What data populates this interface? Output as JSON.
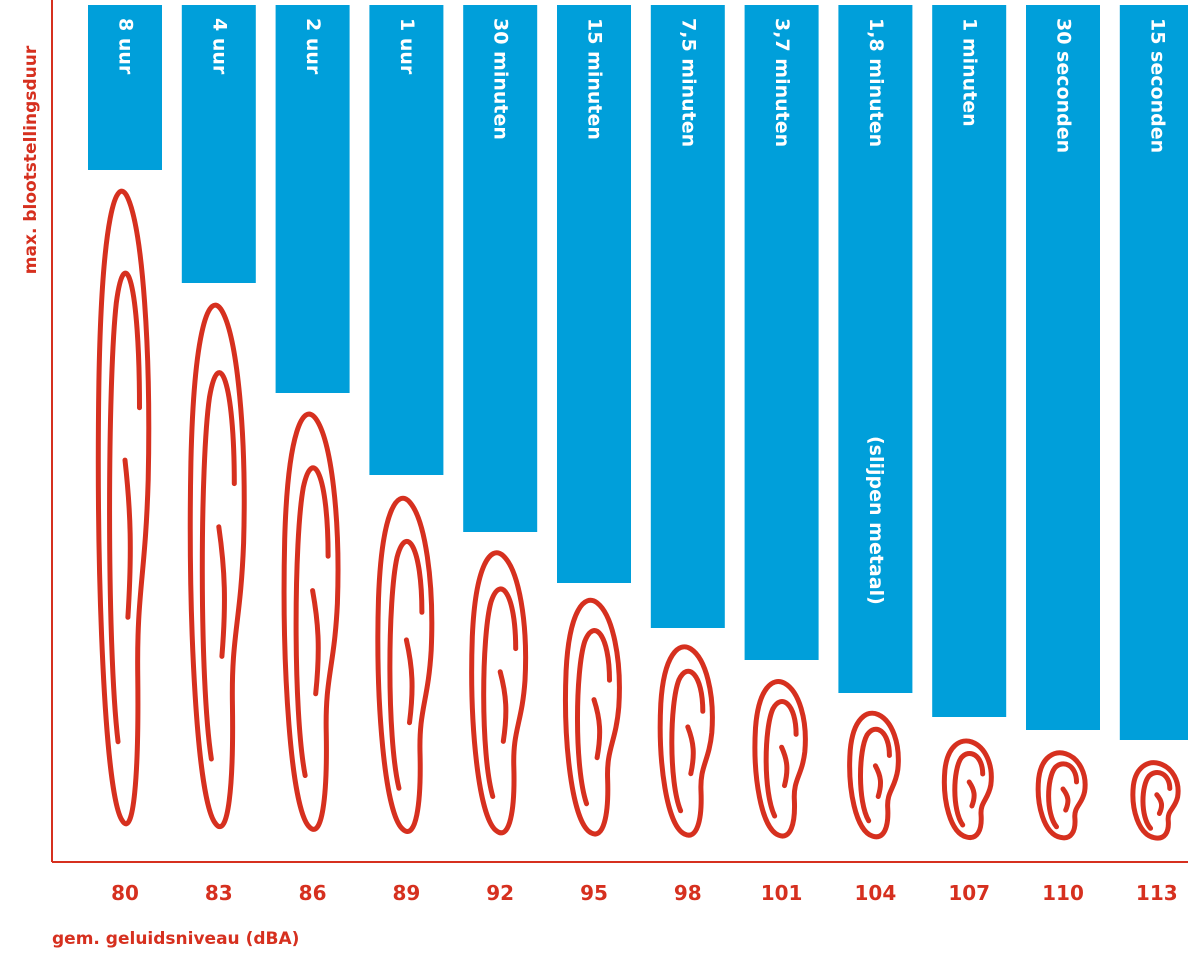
{
  "y_axis_label": "max. blootstellingsduur",
  "x_axis_label": "gem. geluidsniveau (dBA)",
  "columns": [
    {
      "level": "80",
      "duration": "8 uur"
    },
    {
      "level": "83",
      "duration": "4 uur"
    },
    {
      "level": "86",
      "duration": "2 uur"
    },
    {
      "level": "89",
      "duration": "1 uur"
    },
    {
      "level": "92",
      "duration": "30 minuten"
    },
    {
      "level": "95",
      "duration": "15 minuten"
    },
    {
      "level": "98",
      "duration": "7,5 minuten"
    },
    {
      "level": "101",
      "duration": "3,7 minuten"
    },
    {
      "level": "104",
      "duration": "1,8 minuten",
      "note": "(slijpen metaal)"
    },
    {
      "level": "107",
      "duration": "1 minuten"
    },
    {
      "level": "110",
      "duration": "30 seconden"
    },
    {
      "level": "113",
      "duration": "15 seconden"
    }
  ]
}
